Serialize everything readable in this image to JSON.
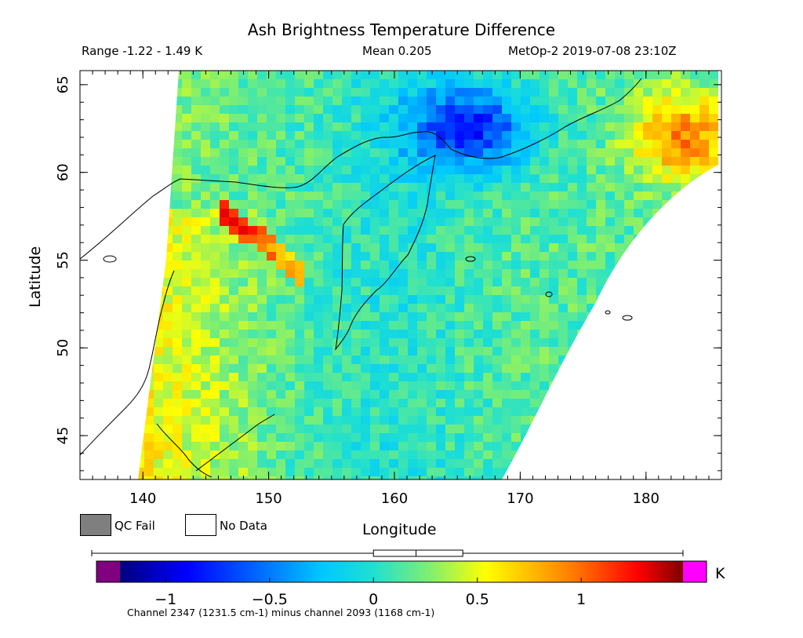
{
  "chart_data": {
    "type": "heatmap",
    "title": "Ash Brightness Temperature Difference",
    "range_text": "Range -1.22 - 1.49 K",
    "mean_text": "Mean 0.205",
    "source_text": "MetOp-2 2019-07-08 23:10Z",
    "xlabel": "Longitude",
    "ylabel": "Latitude",
    "xlim": [
      135,
      186
    ],
    "ylim": [
      42.5,
      65.8
    ],
    "x_ticks": [
      "140",
      "150",
      "160",
      "170",
      "180"
    ],
    "y_ticks": [
      "45",
      "50",
      "55",
      "60",
      "65"
    ],
    "legend": [
      {
        "label": "QC Fail",
        "color": "#7f7f7f"
      },
      {
        "label": "No Data",
        "color": "#ffffff"
      }
    ],
    "colorbar": {
      "min": -1.22,
      "max": 1.49,
      "ticks": [
        "-1",
        "-0.5",
        "0",
        "0.5",
        "1"
      ],
      "unit": "K",
      "underflow_color": "#800080",
      "overflow_color": "#ff00ff",
      "boxplot": {
        "min": -1.22,
        "q1": 0.0,
        "median": 0.205,
        "q3": 0.43,
        "max": 1.49
      }
    },
    "note": "Channel 2347 (1231.5 cm-1) minus channel 2093 (1168 cm-1)",
    "field_features": [
      {
        "label": "Warm ash streak",
        "lon": [
          146,
          153
        ],
        "lat": [
          54,
          58
        ],
        "value": 1.3
      },
      {
        "label": "Cold region north",
        "lon": [
          163,
          171
        ],
        "lat": [
          60,
          65
        ],
        "value": -0.7
      },
      {
        "label": "Warm region east",
        "lon": [
          178,
          186
        ],
        "lat": [
          60,
          64
        ],
        "value": 0.9
      }
    ]
  }
}
